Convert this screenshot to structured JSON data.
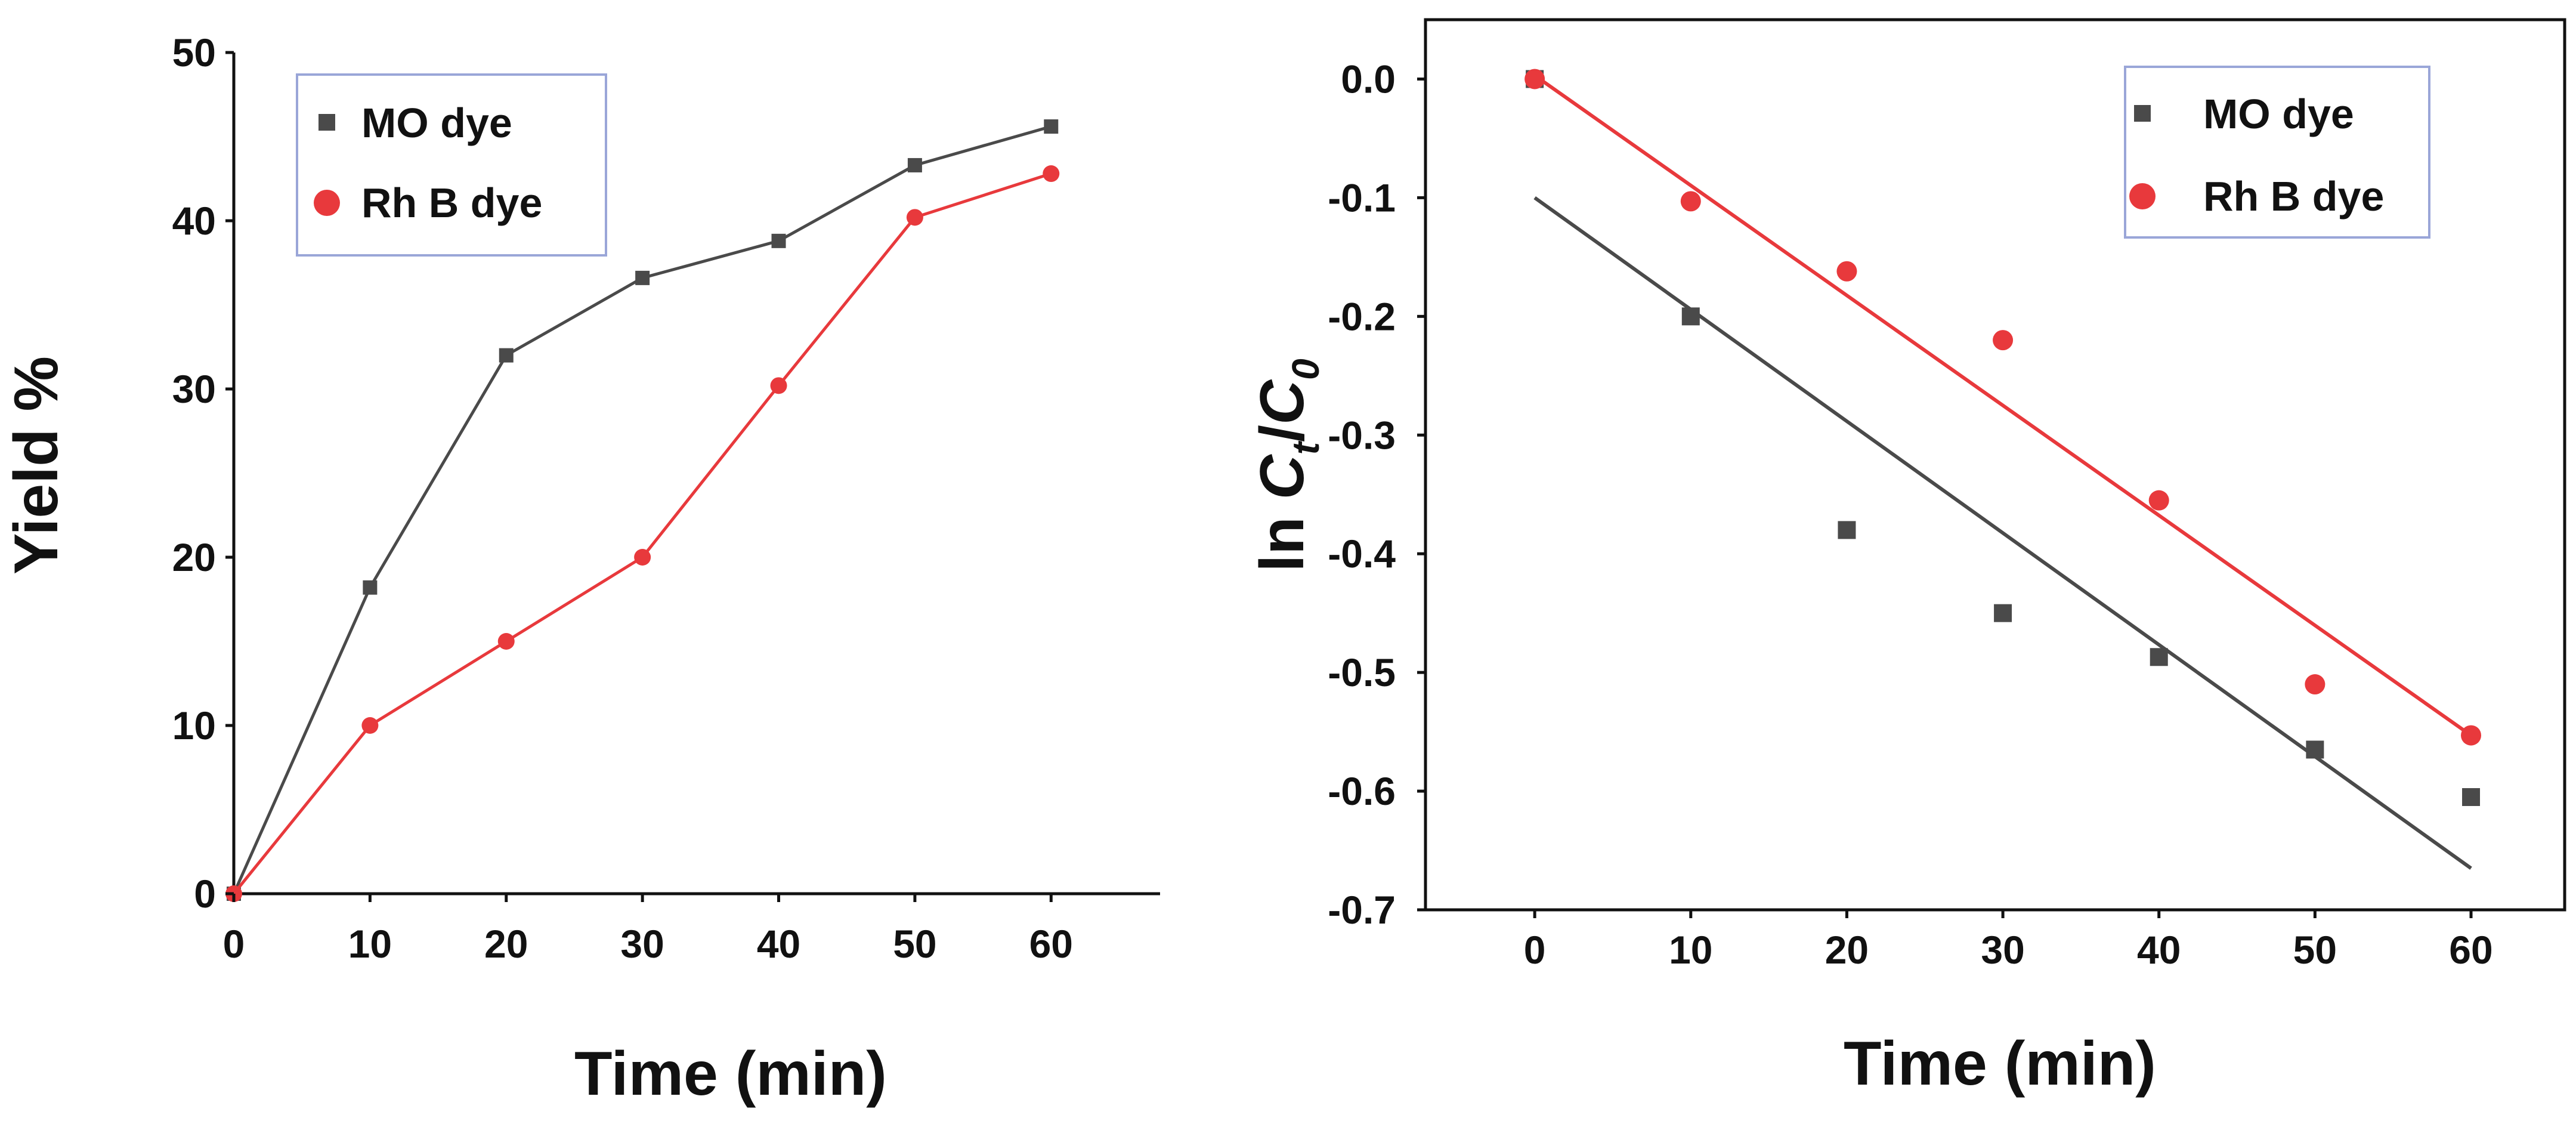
{
  "chart_data": [
    {
      "type": "line",
      "xlabel": "Time (min)",
      "ylabel": "Yield %",
      "xlim": [
        0,
        68
      ],
      "ylim": [
        0,
        50
      ],
      "x_ticks": [
        0,
        10,
        20,
        30,
        40,
        50,
        60
      ],
      "y_ticks": [
        0,
        10,
        20,
        30,
        40,
        50
      ],
      "legend_position": "top-left",
      "grid": false,
      "series": [
        {
          "name": "MO dye",
          "color": "#4a4a4a",
          "marker": "square",
          "x": [
            0,
            10,
            20,
            30,
            40,
            50,
            60
          ],
          "values": [
            0,
            18.2,
            32.0,
            36.6,
            38.8,
            43.3,
            45.6
          ]
        },
        {
          "name": "Rh B dye",
          "color": "#e8393c",
          "marker": "circle",
          "x": [
            0,
            10,
            20,
            30,
            40,
            50,
            60
          ],
          "values": [
            0,
            10.0,
            15.0,
            20.0,
            30.2,
            40.2,
            42.8
          ]
        }
      ]
    },
    {
      "type": "scatter",
      "xlabel": "Time (min)",
      "ylabel": "ln Ct/C0",
      "ylabel_parts": {
        "prefix": "ln ",
        "c": "C",
        "sub1": "t",
        "slash": "/",
        "sub2": "0"
      },
      "xlim": [
        -7,
        66
      ],
      "ylim": [
        -0.7,
        0.05
      ],
      "x_ticks": [
        0,
        10,
        20,
        30,
        40,
        50,
        60
      ],
      "y_ticks": [
        "0.0",
        "-0.1",
        "-0.2",
        "-0.3",
        "-0.4",
        "-0.5",
        "-0.6",
        "-0.7"
      ],
      "legend_position": "top-right",
      "grid": false,
      "series": [
        {
          "name": "MO dye",
          "color": "#4a4a4a",
          "marker": "square",
          "x": [
            0,
            10,
            20,
            30,
            40,
            50,
            60
          ],
          "values": [
            0.0,
            -0.2,
            -0.38,
            -0.45,
            -0.487,
            -0.565,
            -0.605
          ],
          "fit": {
            "x": [
              0,
              60
            ],
            "y": [
              -0.1,
              -0.665
            ]
          }
        },
        {
          "name": "Rh B dye",
          "color": "#e8393c",
          "marker": "circle",
          "x": [
            0,
            10,
            20,
            30,
            40,
            50,
            60
          ],
          "values": [
            0.0,
            -0.103,
            -0.162,
            -0.22,
            -0.355,
            -0.51,
            -0.553
          ],
          "fit": {
            "x": [
              0,
              60
            ],
            "y": [
              0.003,
              -0.553
            ]
          }
        }
      ]
    }
  ]
}
